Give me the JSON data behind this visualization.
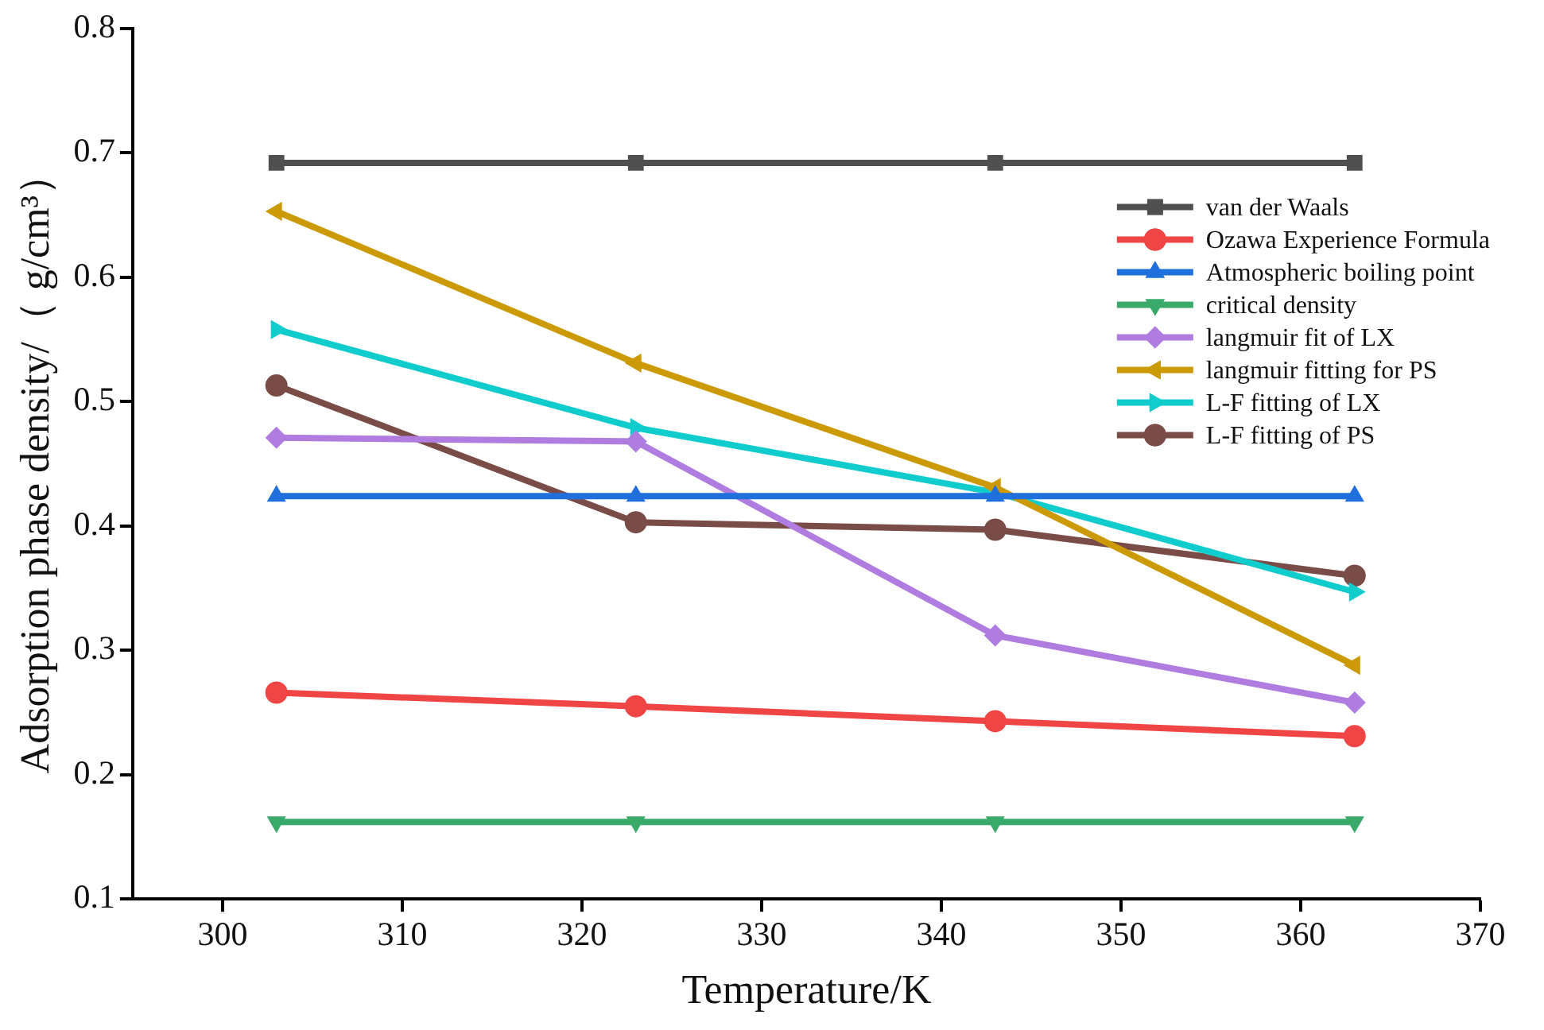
{
  "chart_data": {
    "type": "line",
    "xlabel": "Temperature/K",
    "ylabel": "Adsorption phase density/（ g/cm³）",
    "x": [
      303,
      323,
      343,
      363
    ],
    "xlim": [
      295,
      370
    ],
    "xticks": [
      300,
      310,
      320,
      330,
      340,
      350,
      360,
      370
    ],
    "ylim": [
      0.1,
      0.8
    ],
    "yticks": [
      0.1,
      0.2,
      0.3,
      0.4,
      0.5,
      0.6,
      0.7,
      0.8
    ],
    "grid": false,
    "legend": "top right",
    "series": [
      {
        "name": "van der Waals",
        "color": "#505050",
        "marker": "square",
        "values": [
          0.692,
          0.692,
          0.692,
          0.692
        ]
      },
      {
        "name": "Ozawa Experience Formula",
        "color": "#f04545",
        "marker": "circle",
        "values": [
          0.266,
          0.255,
          0.243,
          0.231
        ]
      },
      {
        "name": "Atmospheric boiling point",
        "color": "#1f6fdc",
        "marker": "triangle",
        "values": [
          0.424,
          0.424,
          0.424,
          0.424
        ]
      },
      {
        "name": "critical density",
        "color": "#3aaa6a",
        "marker": "triangle-down",
        "values": [
          0.162,
          0.162,
          0.162,
          0.162
        ]
      },
      {
        "name": "langmuir fit of LX",
        "color": "#b07ce0",
        "marker": "diamond",
        "values": [
          0.471,
          0.468,
          0.312,
          0.258
        ]
      },
      {
        "name": "langmuir fitting for PS",
        "color": "#cc9a06",
        "marker": "triangle-left",
        "values": [
          0.653,
          0.531,
          0.431,
          0.288
        ]
      },
      {
        "name": "L-F fitting of LX",
        "color": "#10cccc",
        "marker": "triangle-right",
        "values": [
          0.558,
          0.479,
          0.427,
          0.347
        ]
      },
      {
        "name": "L-F fitting of PS",
        "color": "#7a4c48",
        "marker": "circle",
        "values": [
          0.513,
          0.403,
          0.397,
          0.36
        ]
      }
    ]
  }
}
